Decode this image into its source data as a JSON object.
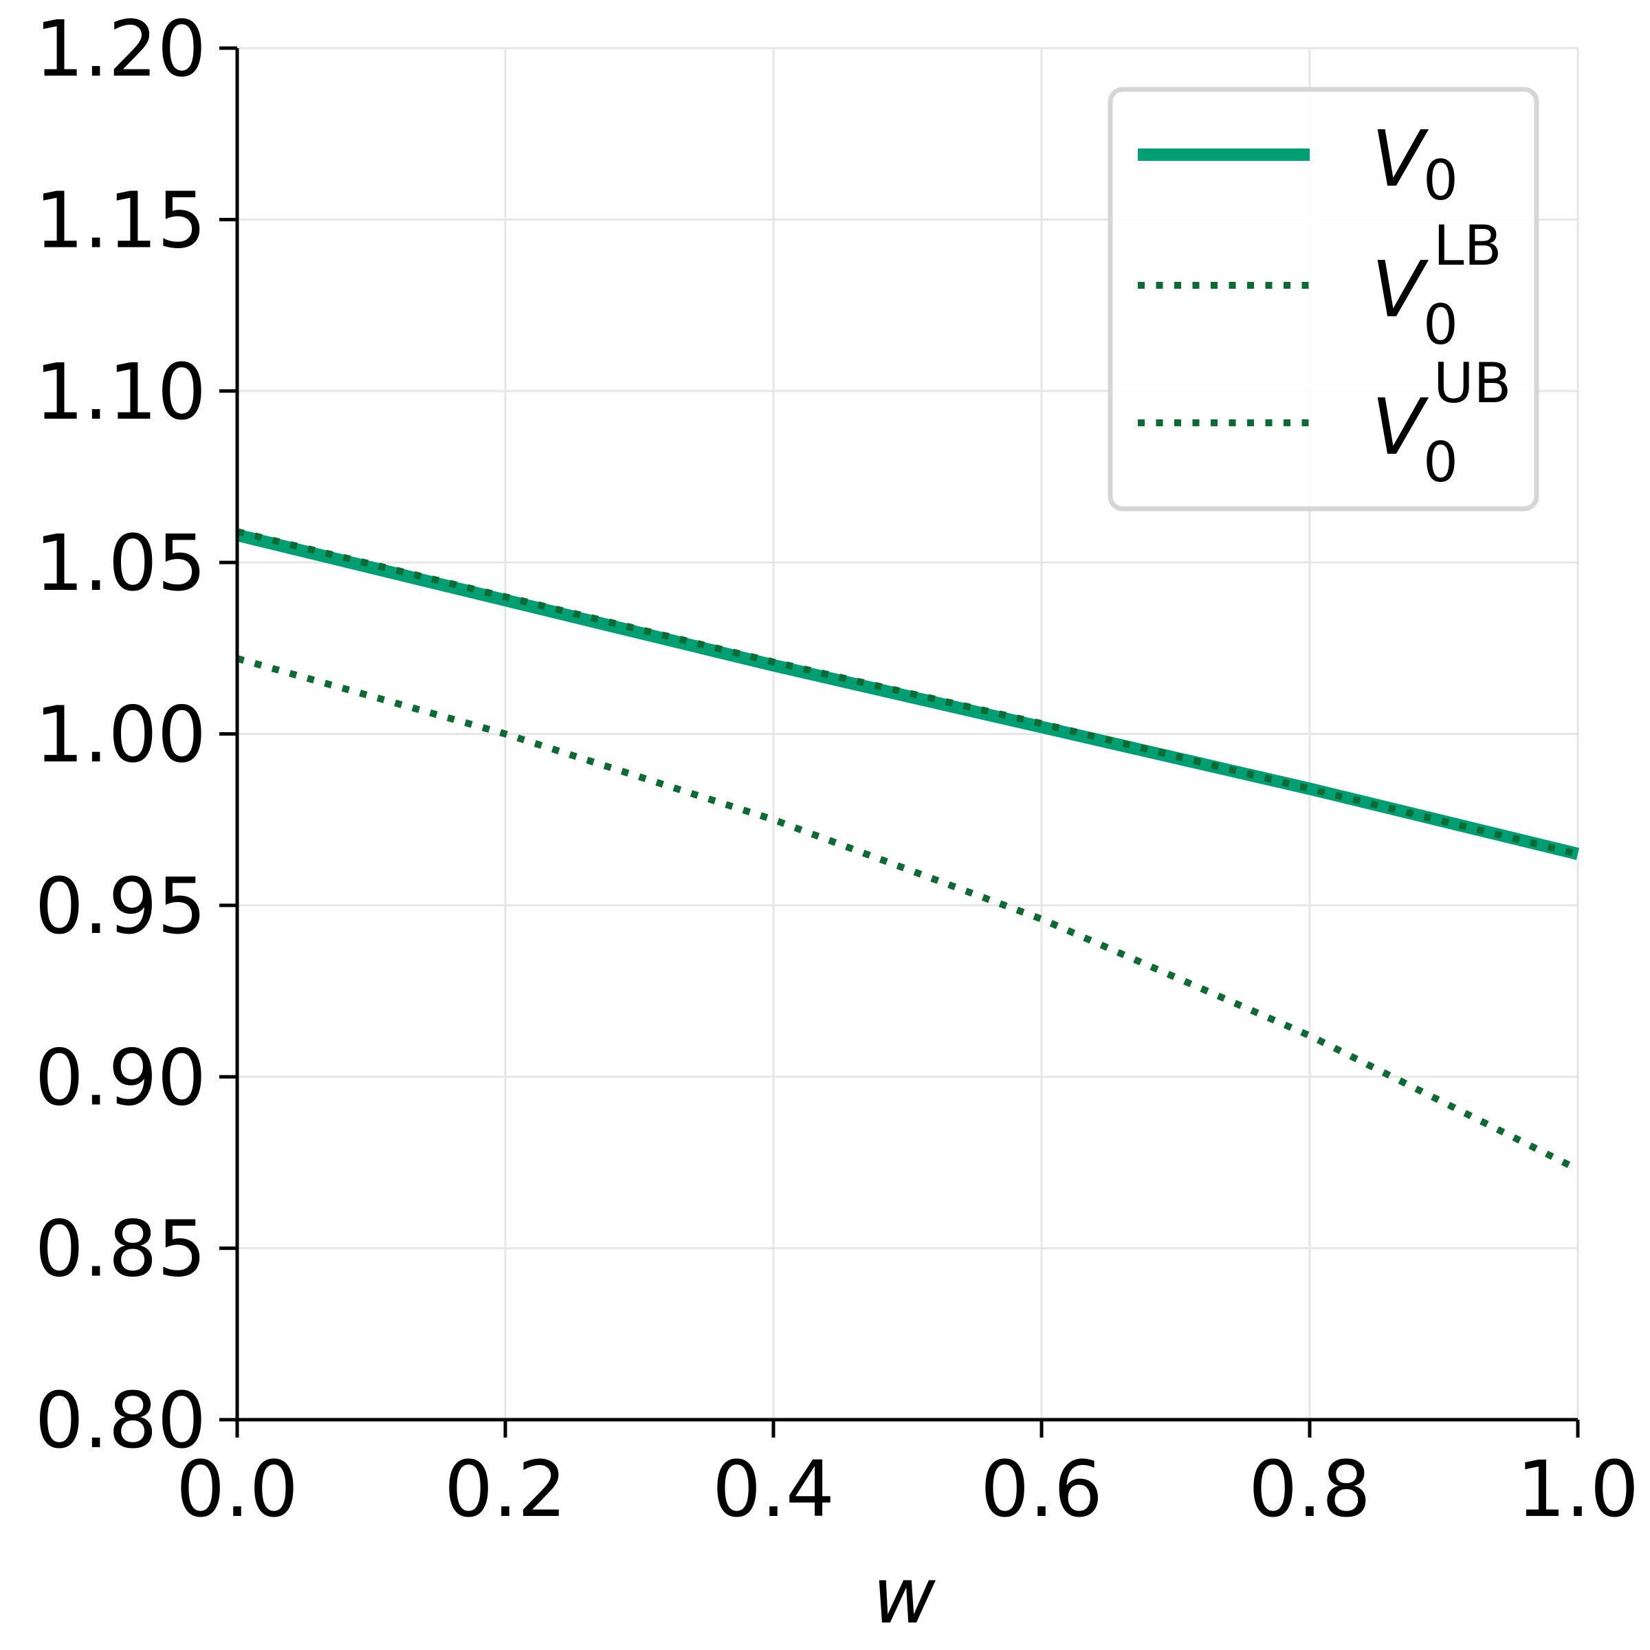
{
  "chart_data": {
    "type": "line",
    "title": "",
    "xlabel": "w",
    "ylabel": "",
    "xlim": [
      0.0,
      1.0
    ],
    "ylim": [
      0.8,
      1.2
    ],
    "xticks": [
      "0.0",
      "0.2",
      "0.4",
      "0.6",
      "0.8",
      "1.0"
    ],
    "yticks": [
      "0.80",
      "0.85",
      "0.90",
      "0.95",
      "1.00",
      "1.05",
      "1.10",
      "1.15",
      "1.20"
    ],
    "grid": true,
    "legend_position": "top-right",
    "series": [
      {
        "name": "V_0",
        "legend_main": "V",
        "legend_sub": "0",
        "legend_sup": "",
        "style": "solid",
        "color": "#009E73",
        "x": [
          0.0,
          0.2,
          0.4,
          0.6,
          0.8,
          1.0
        ],
        "y": [
          1.058,
          1.039,
          1.02,
          1.002,
          0.984,
          0.965
        ]
      },
      {
        "name": "V_0^LB",
        "legend_main": "V",
        "legend_sub": "0",
        "legend_sup": "LB",
        "style": "dotted",
        "color": "#0B6B30",
        "x": [
          0.0,
          0.2,
          0.4,
          0.6,
          0.8,
          1.0
        ],
        "y": [
          1.022,
          1.0,
          0.975,
          0.946,
          0.912,
          0.873
        ]
      },
      {
        "name": "V_0^UB",
        "legend_main": "V",
        "legend_sub": "0",
        "legend_sup": "UB",
        "style": "dotted",
        "color": "#0B6B30",
        "x": [
          0.0,
          0.2,
          0.4,
          0.6,
          0.8,
          1.0
        ],
        "y": [
          1.059,
          1.04,
          1.021,
          1.003,
          0.984,
          0.965
        ]
      }
    ]
  }
}
